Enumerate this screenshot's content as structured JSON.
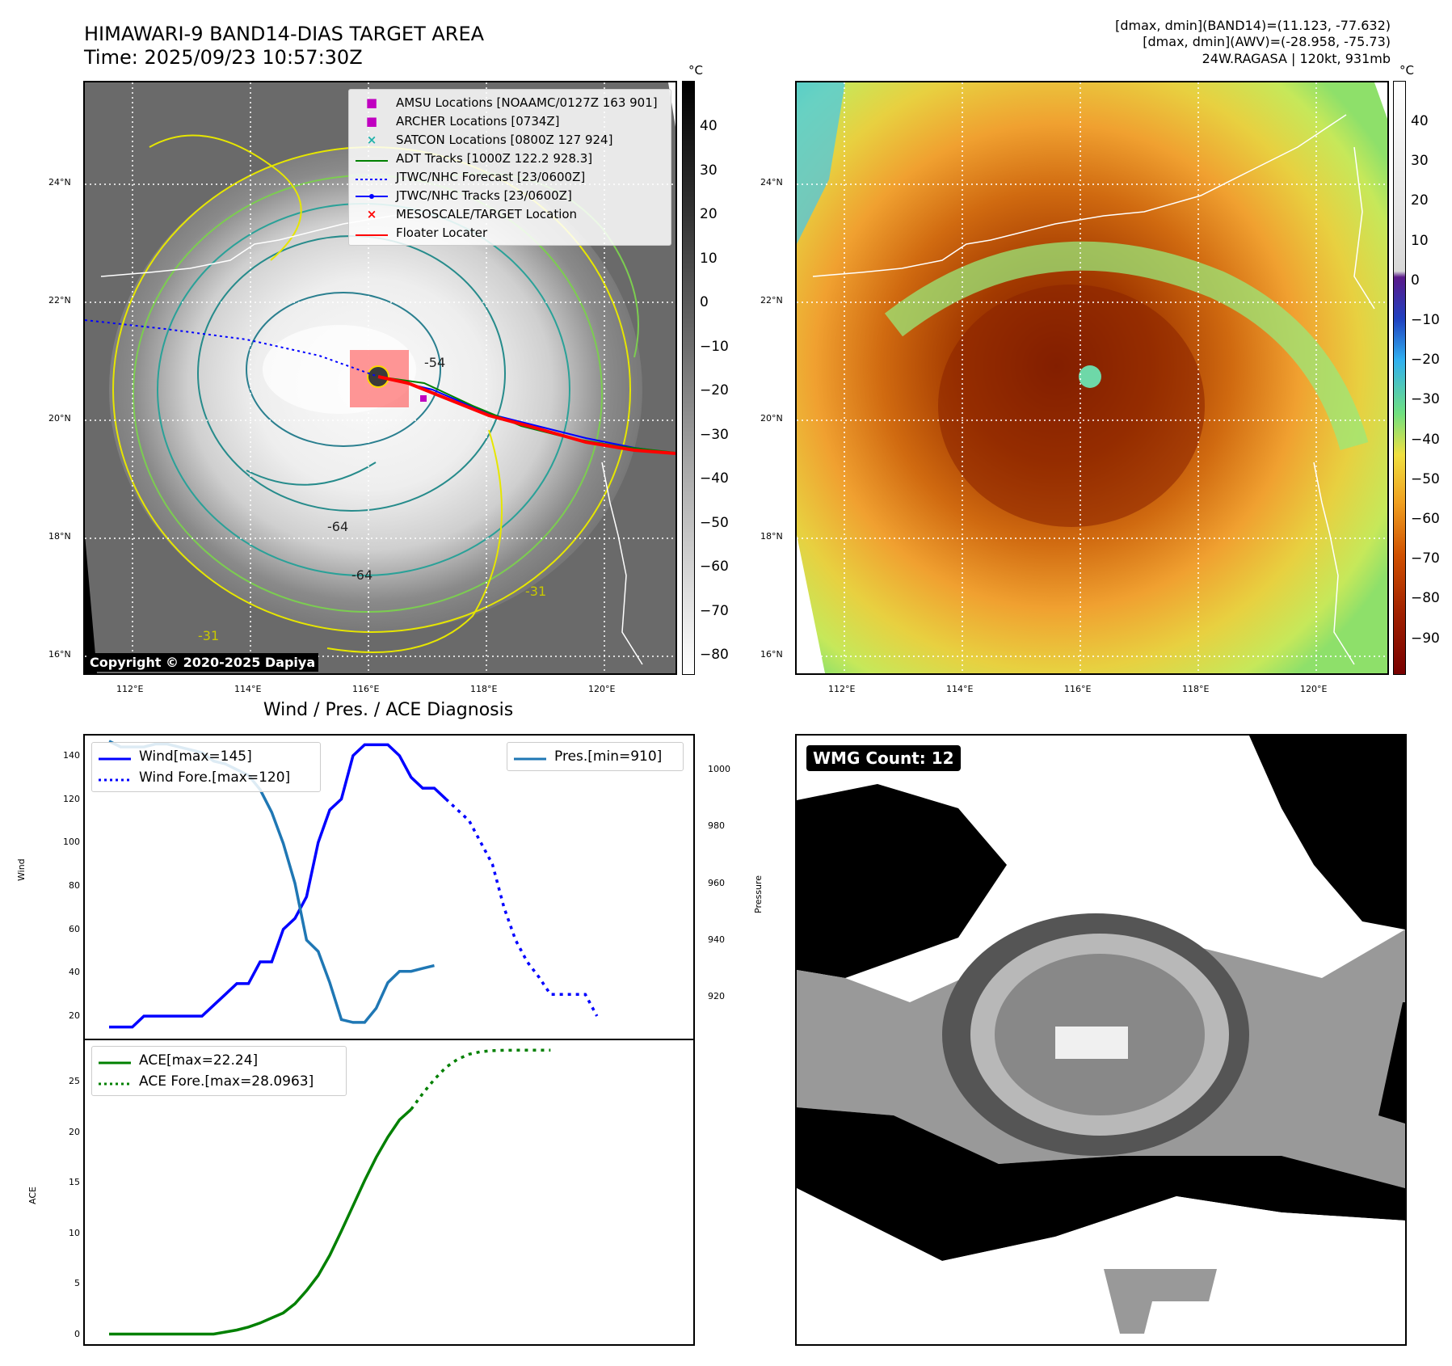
{
  "header": {
    "title_line1": "HIMAWARI-9 BAND14-DIAS TARGET AREA",
    "title_line2": "Time: 2025/09/23 10:57:30Z",
    "meta_line1": "[dmax, dmin](BAND14)=(11.123, -77.632)",
    "meta_line2": "[dmax, dmin](AWV)=(-28.958, -75.73)",
    "meta_line3": "24W.RAGASA | 120kt, 931mb",
    "cb_unit": "°C"
  },
  "map": {
    "lat_ticks": [
      "24°N",
      "22°N",
      "20°N",
      "18°N",
      "16°N"
    ],
    "lon_ticks": [
      "112°E",
      "114°E",
      "116°E",
      "118°E",
      "120°E"
    ],
    "legend": [
      {
        "label": "AMSU Locations [NOAAMC/0127Z 163 901]",
        "color": "#c000c0",
        "style": "square"
      },
      {
        "label": "ARCHER Locations [0734Z]",
        "color": "#c000c0",
        "style": "square"
      },
      {
        "label": "SATCON Locations [0800Z 127 924]",
        "color": "#20b2aa",
        "style": "x"
      },
      {
        "label": "ADT Tracks [1000Z 122.2 928.3]",
        "color": "#008000",
        "style": "line"
      },
      {
        "label": "JTWC/NHC Forecast [23/0600Z]",
        "color": "#0000ff",
        "style": "dotted"
      },
      {
        "label": "JTWC/NHC Tracks [23/0600Z]",
        "color": "#0000ff",
        "style": "line-dot"
      },
      {
        "label": "MESOSCALE/TARGET Location",
        "color": "#ff0000",
        "style": "x"
      },
      {
        "label": "Floater Locater",
        "color": "#ff0000",
        "style": "line"
      }
    ],
    "contour_labels": [
      "-54",
      "-54",
      "-64",
      "-64",
      "-54",
      "-31",
      "-31",
      "-54",
      "-54"
    ],
    "copyright": "Copyright © 2020-2025 Dapiya",
    "gray_colorbar_ticks": [
      "40",
      "30",
      "20",
      "10",
      "0",
      "−10",
      "−20",
      "−30",
      "−40",
      "−50",
      "−60",
      "−70",
      "−80"
    ],
    "color_colorbar_ticks": [
      "40",
      "30",
      "20",
      "10",
      "0",
      "−10",
      "−20",
      "−30",
      "−40",
      "−50",
      "−60",
      "−70",
      "−80",
      "−90"
    ]
  },
  "diagnosis": {
    "title": "Wind / Pres. / ACE Diagnosis",
    "wind_ylabel": "Wind",
    "pres_ylabel": "Pressure",
    "ace_ylabel": "ACE",
    "wind_yticks": [
      "140",
      "120",
      "100",
      "80",
      "60",
      "40",
      "20"
    ],
    "pres_yticks": [
      "1000",
      "980",
      "960",
      "940",
      "920"
    ],
    "ace_yticks": [
      "25",
      "20",
      "15",
      "10",
      "5",
      "0"
    ],
    "legend_wind": "Wind[max=145]",
    "legend_wind_fore": "Wind Fore.[max=120]",
    "legend_pres": "Pres.[min=910]",
    "legend_ace": "ACE[max=22.24]",
    "legend_ace_fore": "ACE Fore.[max=28.0963]"
  },
  "wmg": {
    "label": "WMG Count: 12"
  },
  "colors": {
    "wind": "#0000ff",
    "pres": "#1f77b4",
    "ace": "#008000"
  },
  "chart_data": [
    {
      "type": "line",
      "name": "wind",
      "x": [
        0,
        1,
        2,
        3,
        4,
        5,
        6,
        7,
        8,
        9,
        10,
        11,
        12,
        13,
        14,
        15,
        16,
        17,
        18,
        19,
        20,
        21,
        22,
        23,
        24,
        25,
        26,
        27,
        28,
        29,
        30,
        31,
        32,
        33,
        34,
        35,
        36,
        37,
        38,
        39,
        40,
        41,
        42,
        43,
        44,
        45,
        46,
        47,
        48
      ],
      "series": [
        {
          "name": "Wind[max=145]",
          "values": [
            15,
            15,
            15,
            20,
            20,
            20,
            20,
            20,
            20,
            25,
            30,
            35,
            35,
            45,
            45,
            60,
            65,
            75,
            100,
            115,
            120,
            140,
            145,
            145,
            145,
            140,
            130,
            125,
            125,
            120,
            null,
            null,
            null,
            null,
            null,
            null,
            null,
            null,
            null,
            null,
            null,
            null,
            null,
            null,
            null,
            null,
            null,
            null,
            null
          ]
        },
        {
          "name": "Wind Fore.[max=120]",
          "values": [
            null,
            null,
            null,
            null,
            null,
            null,
            null,
            null,
            null,
            null,
            null,
            null,
            null,
            null,
            null,
            null,
            null,
            null,
            null,
            null,
            null,
            null,
            null,
            null,
            null,
            null,
            null,
            null,
            null,
            120,
            115,
            110,
            100,
            90,
            70,
            55,
            45,
            38,
            30,
            30,
            30,
            30,
            20,
            null,
            null,
            null,
            null,
            null,
            null
          ]
        }
      ],
      "ylim": [
        10,
        150
      ]
    },
    {
      "type": "line",
      "name": "pressure",
      "x": [
        0,
        1,
        2,
        3,
        4,
        5,
        6,
        7,
        8,
        9,
        10,
        11,
        12,
        13,
        14,
        15,
        16,
        17,
        18,
        19,
        20,
        21,
        22,
        23,
        24,
        25,
        26,
        27,
        28,
        29
      ],
      "series": [
        {
          "name": "Pres.[min=910]",
          "values": [
            1010,
            1008,
            1008,
            1008,
            1009,
            1009,
            1008,
            1007,
            1006,
            1003,
            1002,
            1000,
            998,
            993,
            985,
            974,
            960,
            940,
            936,
            925,
            912,
            911,
            911,
            916,
            925,
            929,
            929,
            930,
            931,
            null
          ]
        }
      ],
      "ylim": [
        905,
        1012
      ]
    },
    {
      "type": "line",
      "name": "ace",
      "x": [
        0,
        1,
        2,
        3,
        4,
        5,
        6,
        7,
        8,
        9,
        10,
        11,
        12,
        13,
        14,
        15,
        16,
        17,
        18,
        19,
        20,
        21,
        22,
        23,
        24,
        25,
        26,
        27,
        28,
        29,
        30,
        31,
        32,
        33,
        34,
        35,
        36,
        37,
        38,
        39,
        40,
        41,
        42
      ],
      "series": [
        {
          "name": "ACE[max=22.24]",
          "values": [
            0,
            0,
            0,
            0,
            0,
            0,
            0,
            0,
            0,
            0,
            0.2,
            0.4,
            0.7,
            1.1,
            1.6,
            2.1,
            3.0,
            4.3,
            5.8,
            7.8,
            10.2,
            12.7,
            15.2,
            17.5,
            19.5,
            21.2,
            22.24,
            null,
            null,
            null,
            null,
            null,
            null,
            null,
            null,
            null,
            null,
            null,
            null,
            null,
            null,
            null,
            null
          ]
        },
        {
          "name": "ACE Fore.[max=28.0963]",
          "values": [
            null,
            null,
            null,
            null,
            null,
            null,
            null,
            null,
            null,
            null,
            null,
            null,
            null,
            null,
            null,
            null,
            null,
            null,
            null,
            null,
            null,
            null,
            null,
            null,
            null,
            null,
            22.24,
            23.8,
            25.2,
            26.4,
            27.2,
            27.7,
            27.95,
            28.05,
            28.09,
            28.0963,
            28.0963,
            28.0963,
            28.0963,
            null,
            null,
            null,
            null
          ]
        }
      ],
      "ylim": [
        -1,
        29
      ]
    }
  ]
}
